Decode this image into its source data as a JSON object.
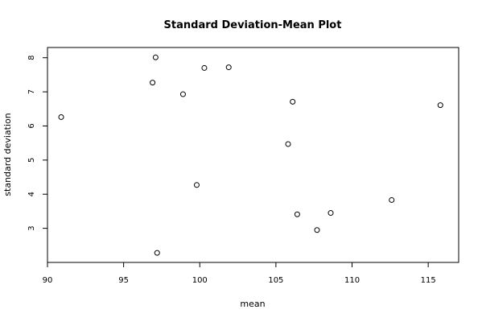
{
  "chart_data": {
    "type": "scatter",
    "title": "Standard Deviation-Mean Plot",
    "xlabel": "mean",
    "ylabel": "standard deviation",
    "xlim": [
      90,
      117
    ],
    "ylim": [
      2,
      8.3
    ],
    "xticks": [
      90,
      95,
      100,
      105,
      110,
      115
    ],
    "xtick_labels": [
      "90",
      "95",
      "100",
      "105",
      "110",
      "115"
    ],
    "yticks": [
      3,
      4,
      5,
      6,
      7,
      8
    ],
    "ytick_labels": [
      "3",
      "4",
      "5",
      "6",
      "7",
      "8"
    ],
    "grid": false,
    "points": [
      {
        "x": 90.9,
        "y": 6.26
      },
      {
        "x": 96.9,
        "y": 7.27
      },
      {
        "x": 97.1,
        "y": 8.01
      },
      {
        "x": 97.2,
        "y": 2.28
      },
      {
        "x": 98.9,
        "y": 6.93
      },
      {
        "x": 99.8,
        "y": 4.27
      },
      {
        "x": 100.3,
        "y": 7.7
      },
      {
        "x": 101.9,
        "y": 7.72
      },
      {
        "x": 105.8,
        "y": 5.47
      },
      {
        "x": 106.1,
        "y": 6.71
      },
      {
        "x": 106.4,
        "y": 3.41
      },
      {
        "x": 107.7,
        "y": 2.95
      },
      {
        "x": 108.6,
        "y": 3.45
      },
      {
        "x": 112.6,
        "y": 3.83
      },
      {
        "x": 115.8,
        "y": 6.61
      }
    ]
  }
}
